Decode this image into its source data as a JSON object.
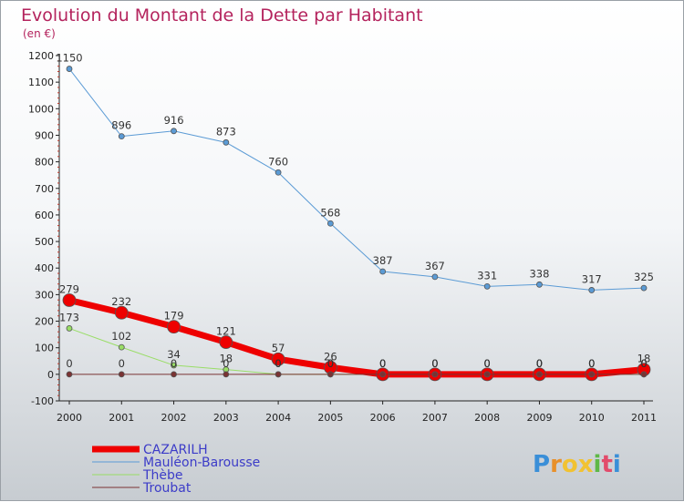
{
  "header": {
    "title": "Evolution du Montant de la Dette par Habitant",
    "subtitle": "(en €)"
  },
  "brand": {
    "letters": [
      "P",
      "r",
      "o",
      "x",
      "i",
      "t",
      "i"
    ],
    "colors": [
      "#3a8fd8",
      "#e8902a",
      "#f1c232",
      "#f1c232",
      "#5fb848",
      "#e24b6b",
      "#3a8fd8"
    ]
  },
  "chart_data": {
    "type": "line",
    "x": [
      "2000",
      "2001",
      "2002",
      "2003",
      "2004",
      "2005",
      "2006",
      "2007",
      "2008",
      "2009",
      "2010",
      "2011"
    ],
    "ylim": [
      -100,
      1200
    ],
    "yticks": [
      -100,
      0,
      100,
      200,
      300,
      400,
      500,
      600,
      700,
      800,
      900,
      1000,
      1100,
      1200
    ],
    "grid": false,
    "legend_position": "bottom-left",
    "series": [
      {
        "name": "Mauléon-Barousse",
        "color": "#5b9bd5",
        "width": 1,
        "marker": 3,
        "values": [
          1150,
          896,
          916,
          873,
          760,
          568,
          387,
          367,
          331,
          338,
          317,
          325
        ],
        "labels": [
          "1150",
          "896",
          "916",
          "873",
          "760",
          "568",
          "387",
          "367",
          "331",
          "338",
          "317",
          "325"
        ]
      },
      {
        "name": "Thèbe",
        "color": "#99dd66",
        "width": 1,
        "marker": 3,
        "values": [
          173,
          102,
          34,
          18,
          0,
          0,
          0,
          0,
          0,
          0,
          0,
          0
        ],
        "labels": [
          "173",
          "102",
          "34",
          "18",
          "0",
          "0",
          "0",
          "0",
          "0",
          "0",
          "0",
          "0"
        ]
      },
      {
        "name": "CAZARILH",
        "color": "#ee0000",
        "width": 7,
        "marker": 7,
        "values": [
          279,
          232,
          179,
          121,
          57,
          26,
          0,
          0,
          0,
          0,
          0,
          18
        ],
        "labels": [
          "279",
          "232",
          "179",
          "121",
          "57",
          "26",
          "0",
          "0",
          "0",
          "0",
          "0",
          "18"
        ]
      },
      {
        "name": "Troubat",
        "color": "#7a3333",
        "width": 1,
        "marker": 3,
        "values": [
          0,
          0,
          0,
          0,
          0,
          0,
          0,
          0,
          0,
          0,
          0,
          0
        ],
        "labels": [
          "0",
          "0",
          "0",
          "0",
          "0",
          "0",
          "0",
          "0",
          "0",
          "0",
          "0",
          "0"
        ]
      }
    ],
    "legend": [
      {
        "name": "CAZARILH",
        "color": "#ee0000",
        "width": 7
      },
      {
        "name": "Mauléon-Barousse",
        "color": "#5b9bd5",
        "width": 1
      },
      {
        "name": "Thèbe",
        "color": "#99dd66",
        "width": 1
      },
      {
        "name": "Troubat",
        "color": "#7a3333",
        "width": 1
      }
    ]
  }
}
